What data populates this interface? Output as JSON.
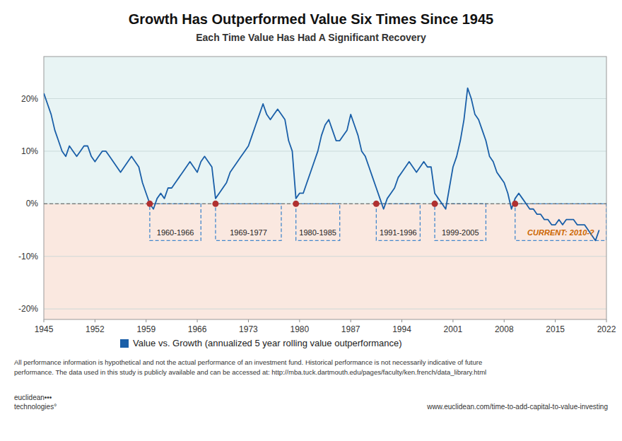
{
  "chart_data": {
    "type": "line",
    "title": "Growth Has Outperformed Value Six Times Since 1945",
    "subtitle": "Each Time Value Has Had A Significant Recovery",
    "x": [
      1945.0,
      1945.5,
      1946.0,
      1946.5,
      1947.0,
      1947.5,
      1948.0,
      1948.5,
      1949.0,
      1949.5,
      1950.0,
      1950.5,
      1951.0,
      1951.5,
      1952.0,
      1952.5,
      1953.0,
      1953.5,
      1954.0,
      1954.5,
      1955.0,
      1955.5,
      1956.0,
      1956.5,
      1957.0,
      1957.5,
      1958.0,
      1958.5,
      1959.0,
      1959.5,
      1960.0,
      1960.5,
      1961.0,
      1961.5,
      1962.0,
      1962.5,
      1963.0,
      1963.5,
      1964.0,
      1964.5,
      1965.0,
      1965.5,
      1966.0,
      1966.5,
      1967.0,
      1967.5,
      1968.0,
      1968.5,
      1969.0,
      1969.5,
      1970.0,
      1970.5,
      1971.0,
      1971.5,
      1972.0,
      1972.5,
      1973.0,
      1973.5,
      1974.0,
      1974.5,
      1975.0,
      1975.5,
      1976.0,
      1976.5,
      1977.0,
      1977.5,
      1978.0,
      1978.5,
      1979.0,
      1979.5,
      1980.0,
      1980.5,
      1981.0,
      1981.5,
      1982.0,
      1982.5,
      1983.0,
      1983.5,
      1984.0,
      1984.5,
      1985.0,
      1985.5,
      1986.0,
      1986.5,
      1987.0,
      1987.5,
      1988.0,
      1988.5,
      1989.0,
      1989.5,
      1990.0,
      1990.5,
      1991.0,
      1991.5,
      1992.0,
      1992.5,
      1993.0,
      1993.5,
      1994.0,
      1994.5,
      1995.0,
      1995.5,
      1996.0,
      1996.5,
      1997.0,
      1997.5,
      1998.0,
      1998.5,
      1999.0,
      1999.5,
      2000.0,
      2000.5,
      2001.0,
      2001.5,
      2002.0,
      2002.5,
      2003.0,
      2003.5,
      2004.0,
      2004.5,
      2005.0,
      2005.5,
      2006.0,
      2006.5,
      2007.0,
      2007.5,
      2008.0,
      2008.5,
      2009.0,
      2009.5,
      2010.0,
      2010.5,
      2011.0,
      2011.5,
      2012.0,
      2012.5,
      2013.0,
      2013.5,
      2014.0,
      2014.5,
      2015.0,
      2015.5,
      2016.0,
      2016.5,
      2017.0,
      2017.5,
      2018.0,
      2018.5,
      2019.0,
      2019.5,
      2020.0,
      2020.5,
      2021.0
    ],
    "series": [
      {
        "name": " Value vs. Growth (annualized 5 year rolling value outperformance)",
        "color": "#1a5fa8",
        "values": [
          0.21,
          0.19,
          0.17,
          0.14,
          0.12,
          0.1,
          0.09,
          0.11,
          0.1,
          0.09,
          0.1,
          0.11,
          0.11,
          0.09,
          0.08,
          0.09,
          0.1,
          0.1,
          0.09,
          0.08,
          0.07,
          0.06,
          0.07,
          0.08,
          0.09,
          0.08,
          0.07,
          0.04,
          0.02,
          0.0,
          -0.01,
          0.01,
          0.02,
          0.01,
          0.03,
          0.03,
          0.04,
          0.05,
          0.06,
          0.07,
          0.08,
          0.07,
          0.06,
          0.08,
          0.09,
          0.08,
          0.07,
          0.01,
          0.02,
          0.03,
          0.04,
          0.06,
          0.07,
          0.08,
          0.09,
          0.1,
          0.11,
          0.13,
          0.15,
          0.17,
          0.19,
          0.17,
          0.16,
          0.17,
          0.18,
          0.17,
          0.16,
          0.12,
          0.1,
          0.01,
          0.02,
          0.02,
          0.04,
          0.06,
          0.08,
          0.1,
          0.13,
          0.15,
          0.16,
          0.14,
          0.12,
          0.12,
          0.13,
          0.14,
          0.17,
          0.15,
          0.13,
          0.1,
          0.09,
          0.07,
          0.05,
          0.03,
          0.01,
          -0.01,
          0.01,
          0.02,
          0.03,
          0.05,
          0.06,
          0.07,
          0.08,
          0.07,
          0.06,
          0.07,
          0.08,
          0.07,
          0.07,
          0.02,
          0.01,
          0.0,
          -0.01,
          0.03,
          0.07,
          0.09,
          0.12,
          0.16,
          0.22,
          0.2,
          0.17,
          0.16,
          0.14,
          0.12,
          0.09,
          0.08,
          0.06,
          0.05,
          0.04,
          0.02,
          -0.01,
          0.01,
          0.02,
          0.01,
          0.0,
          -0.01,
          -0.01,
          -0.02,
          -0.02,
          -0.03,
          -0.03,
          -0.04,
          -0.04,
          -0.03,
          -0.04,
          -0.03,
          -0.03,
          -0.03,
          -0.04,
          -0.04,
          -0.04,
          -0.05,
          -0.06,
          -0.07,
          -0.05
        ]
      }
    ],
    "xlim": [
      1945,
      2022
    ],
    "ylim": [
      -0.22,
      0.28
    ],
    "xticks": [
      1945,
      1952,
      1959,
      1966,
      1973,
      1980,
      1987,
      1994,
      2001,
      2008,
      2015,
      2022
    ],
    "yticks": [
      {
        "value": -0.2,
        "label": "-20%"
      },
      {
        "value": -0.1,
        "label": "-10%"
      },
      {
        "value": 0.0,
        "label": "0%"
      },
      {
        "value": 0.1,
        "label": "10%"
      },
      {
        "value": 0.2,
        "label": "20%"
      }
    ],
    "grid": true,
    "reference_line": {
      "value": 0,
      "color": "#555555",
      "line_style": "dashed",
      "above_color": "#e8f4f4",
      "below_color": "#fae8e0"
    },
    "period_boxes": {
      "color": "#4488cc",
      "line_style": "dashed",
      "items": [
        {
          "label": "1960-1966",
          "x_start": 1959.5,
          "x_end": 1966.5
        },
        {
          "label": "1969-1977",
          "x_start": 1968.5,
          "x_end": 1977.5
        },
        {
          "label": "1980-1985",
          "x_start": 1979.5,
          "x_end": 1985.5
        },
        {
          "label": "1991-1996",
          "x_start": 1990.5,
          "x_end": 1996.5
        },
        {
          "label": "1999-2005",
          "x_start": 1998.5,
          "x_end": 2005.5
        },
        {
          "label": "CURRENT: 2010-?",
          "x_start": 2009.5,
          "x_end": 2022.0,
          "color": "#cc6600"
        }
      ]
    },
    "markers": {
      "x": [
        1959.5,
        1968.5,
        1979.5,
        1990.5,
        1998.5,
        2009.5
      ],
      "color": "#b03030",
      "marker": "circle"
    },
    "footnotes": [
      "All performance information is hypothetical and not the actual performance of an investment fund. Historical performance is not necessarily indicative of future",
      "performance. The data used in this study is publicly available and can be accessed at: http://mba.tuck.dartmouth.edu/pages/faculty/ken.french/data_library.html"
    ],
    "watermarks": [
      "euclidean•••\ntechnologies°",
      "www.euclidean.com/time-to-add-capital-to-value-investing"
    ]
  }
}
